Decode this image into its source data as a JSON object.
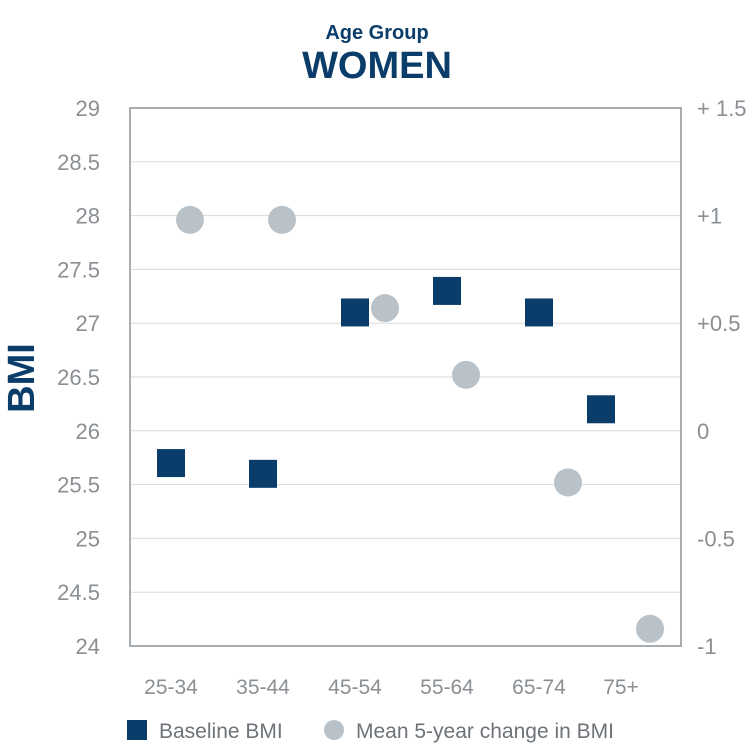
{
  "chart_data": {
    "type": "scatter",
    "title": "Age Group",
    "subtitle": "WOMEN",
    "ylabel": "BMI",
    "categories": [
      "25-34",
      "35-44",
      "45-54",
      "55-64",
      "65-74",
      "75+"
    ],
    "ylim": [
      24,
      29
    ],
    "y_ticks": [
      "29",
      "28.5",
      "28",
      "27.5",
      "27",
      "26.5",
      "26",
      "25.5",
      "25",
      "24.5",
      "24"
    ],
    "y2lim": [
      -1,
      1.5
    ],
    "y2_ticks": [
      "+ 1.5",
      "+1",
      "+0.5",
      "0",
      "-0.5",
      "-1"
    ],
    "grid": true,
    "legend_position": "bottom",
    "series": [
      {
        "name": "Baseline BMI",
        "axis": "left",
        "marker": "square",
        "color": "#0b3d6b",
        "values": [
          25.7,
          25.6,
          27.1,
          27.3,
          27.1,
          26.2
        ]
      },
      {
        "name": "Mean 5-year change in BMI",
        "axis": "right",
        "marker": "circle",
        "color": "#b9c2c8",
        "values": [
          0.98,
          0.98,
          0.57,
          0.26,
          -0.24,
          -0.92
        ]
      }
    ]
  }
}
